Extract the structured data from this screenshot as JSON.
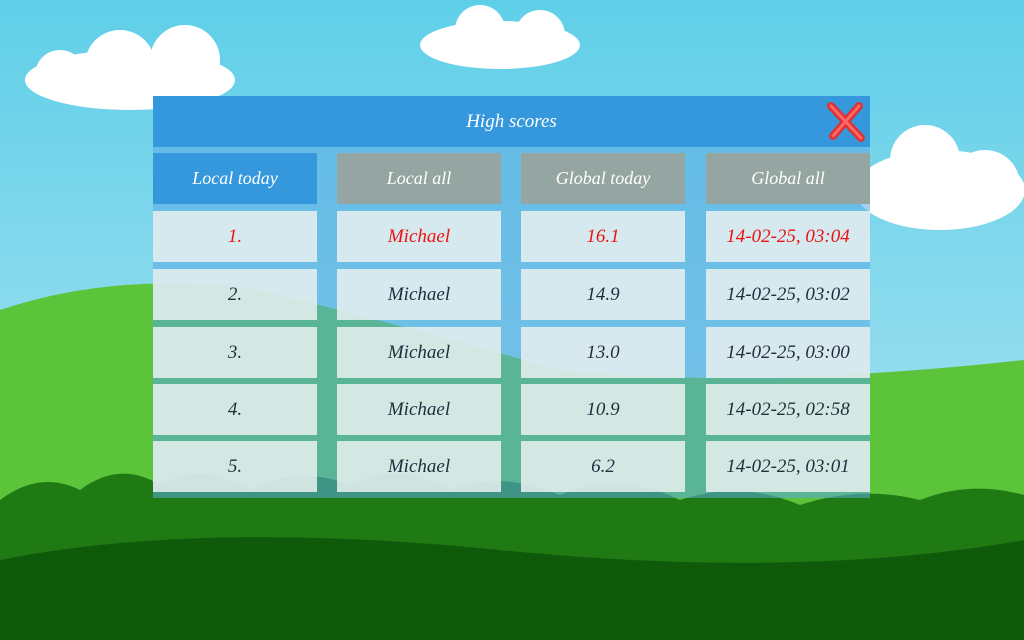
{
  "header": {
    "title": "High scores"
  },
  "tabs": [
    "Local today",
    "Local all",
    "Global today",
    "Global all"
  ],
  "table": {
    "rows": [
      [
        "1.",
        "Michael",
        "16.1",
        "14-02-25, 03:04"
      ],
      [
        "2.",
        "Michael",
        "14.9",
        "14-02-25, 03:02"
      ],
      [
        "3.",
        "Michael",
        "13.0",
        "14-02-25, 03:00"
      ],
      [
        "4.",
        "Michael",
        "10.9",
        "14-02-25, 02:58"
      ],
      [
        "5.",
        "Michael",
        "6.2",
        "14-02-25, 03:01"
      ]
    ]
  }
}
